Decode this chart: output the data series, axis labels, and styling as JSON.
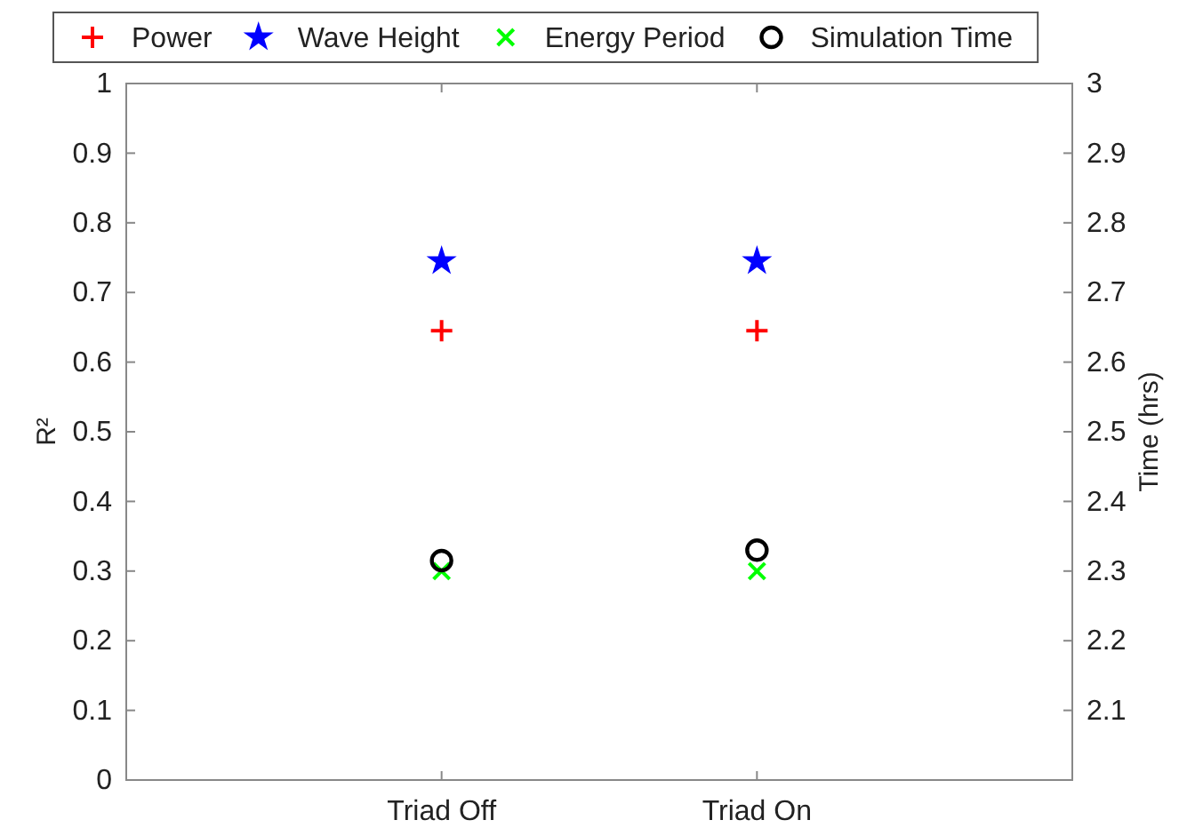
{
  "chart_data": {
    "type": "scatter",
    "categories": [
      "Triad Off",
      "Triad On"
    ],
    "ylabel": "R²",
    "y2label": "Time (hrs)",
    "ylim": [
      0,
      1
    ],
    "yticks": [
      0,
      0.1,
      0.2,
      0.3,
      0.4,
      0.5,
      0.6,
      0.7,
      0.8,
      0.9,
      1
    ],
    "y2lim": [
      2,
      3
    ],
    "y2ticks": [
      2.1,
      2.2,
      2.3,
      2.4,
      2.5,
      2.6,
      2.7,
      2.8,
      2.9,
      3
    ],
    "legend": "top",
    "grid": false,
    "series": [
      {
        "name": "Power",
        "color": "#ff0000",
        "marker": "cross",
        "values": [
          0.645,
          0.645
        ]
      },
      {
        "name": "Wave Height",
        "color": "#0000ff",
        "marker": "star",
        "values": [
          0.745,
          0.745
        ]
      },
      {
        "name": "Energy Period",
        "color": "#00ff00",
        "marker": "x",
        "values": [
          0.3,
          0.3
        ]
      },
      {
        "name": "Simulation Time",
        "color": "#000000",
        "marker": "circle",
        "axis": "y2",
        "values": [
          2.315,
          2.33
        ]
      }
    ]
  }
}
